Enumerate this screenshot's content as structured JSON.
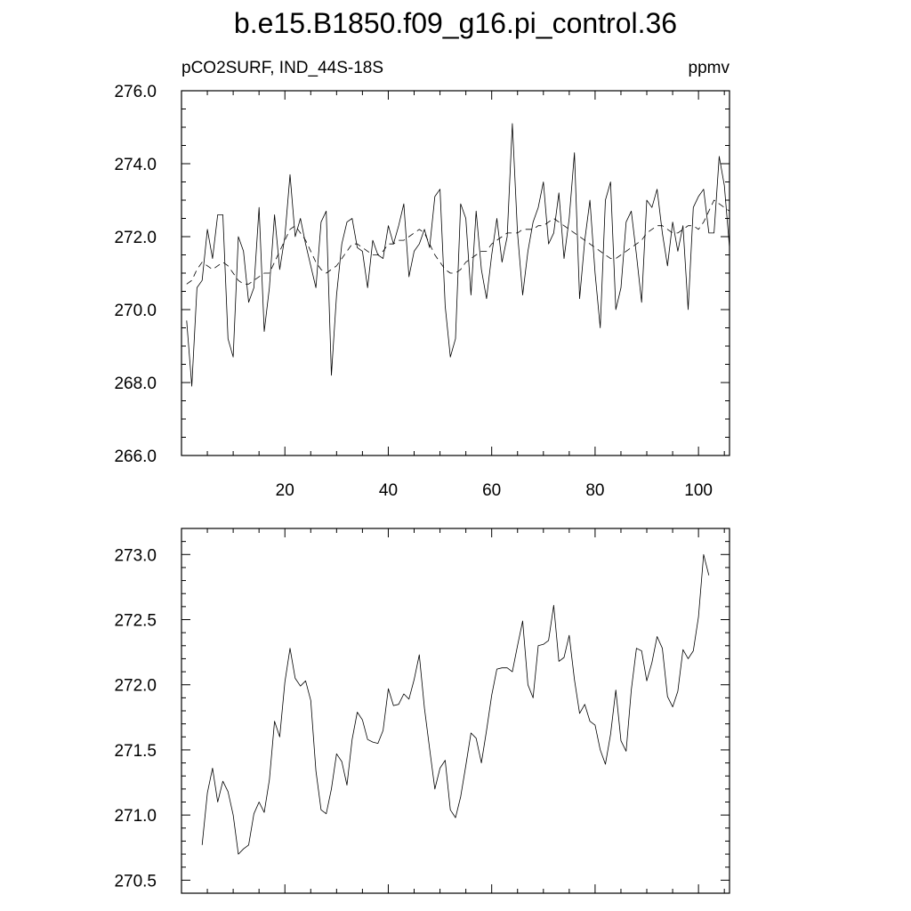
{
  "title": "b.e15.B1850.f09_g16.pi_control.36",
  "chart_data": [
    {
      "type": "line",
      "left_label": "pCO2SURF, IND_44S-18S",
      "right_label": "ppmv",
      "xlim": [
        0,
        106
      ],
      "ylim": [
        266,
        276
      ],
      "y_ticks": [
        266,
        268,
        270,
        272,
        274,
        276
      ],
      "y_tick_labels": [
        "266.0",
        "268.0",
        "270.0",
        "272.0",
        "274.0",
        "276.0"
      ],
      "x_ticks": [
        20,
        40,
        60,
        80,
        100
      ],
      "x_tick_labels": [
        "20",
        "40",
        "60",
        "80",
        "100"
      ],
      "x_start": 1,
      "series": [
        {
          "style": "solid",
          "values": [
            269.7,
            267.9,
            270.6,
            270.8,
            272.2,
            271.4,
            272.6,
            272.6,
            269.2,
            268.7,
            272.0,
            271.6,
            270.2,
            270.6,
            272.8,
            269.4,
            270.6,
            272.6,
            271.1,
            272.0,
            273.7,
            272.0,
            272.5,
            271.8,
            271.2,
            270.6,
            272.4,
            272.7,
            268.2,
            270.4,
            271.8,
            272.4,
            272.5,
            271.7,
            271.6,
            270.6,
            271.9,
            271.5,
            271.4,
            272.3,
            271.8,
            272.3,
            272.9,
            270.9,
            271.6,
            271.8,
            272.2,
            271.7,
            273.1,
            273.3,
            270.1,
            268.7,
            269.2,
            272.9,
            272.5,
            270.4,
            272.7,
            271.1,
            270.3,
            271.5,
            272.5,
            271.3,
            272.0,
            275.1,
            272.1,
            270.4,
            271.6,
            272.4,
            272.8,
            273.5,
            271.8,
            272.1,
            273.2,
            271.4,
            272.5,
            274.3,
            270.3,
            271.9,
            273.0,
            271.0,
            269.5,
            273.0,
            273.5,
            270.0,
            270.6,
            272.4,
            272.7,
            271.5,
            270.2,
            273.0,
            272.8,
            273.3,
            272.1,
            271.2,
            272.4,
            271.6,
            272.3,
            270.0,
            272.8,
            273.1,
            273.3,
            272.1,
            272.1,
            274.2,
            273.4,
            271.7
          ],
          "dash": "6,4"
        },
        {
          "style": "dashed",
          "values": [
            270.7,
            270.8,
            271.1,
            271.3,
            271.2,
            271.1,
            271.2,
            271.3,
            271.2,
            271.0,
            270.8,
            270.7,
            270.7,
            270.8,
            270.9,
            271.0,
            271.0,
            271.3,
            271.6,
            271.9,
            272.2,
            272.3,
            272.1,
            271.9,
            271.6,
            271.3,
            271.1,
            271.0,
            271.1,
            271.2,
            271.4,
            271.6,
            271.8,
            271.8,
            271.7,
            271.6,
            271.5,
            271.5,
            271.6,
            271.8,
            271.8,
            271.9,
            271.9,
            272.0,
            272.1,
            272.2,
            272.1,
            271.8,
            271.5,
            271.3,
            271.1,
            271.0,
            271.0,
            271.1,
            271.3,
            271.4,
            271.5,
            271.6,
            271.6,
            271.8,
            271.9,
            272.0,
            272.1,
            272.1,
            272.1,
            272.2,
            272.2,
            272.2,
            272.3,
            272.3,
            272.4,
            272.5,
            272.4,
            272.3,
            272.2,
            272.1,
            272.0,
            271.9,
            271.8,
            271.7,
            271.6,
            271.5,
            271.4,
            271.4,
            271.5,
            271.6,
            271.7,
            271.8,
            271.9,
            272.1,
            272.2,
            272.3,
            272.3,
            272.2,
            272.1,
            272.1,
            272.2,
            272.3,
            272.3,
            272.2,
            272.4,
            272.7,
            273.0,
            272.9,
            272.8,
            272.7
          ]
        }
      ]
    },
    {
      "type": "line",
      "xlim": [
        0,
        106
      ],
      "ylim": [
        270.4,
        273.2
      ],
      "y_ticks": [
        270.5,
        271.0,
        271.5,
        272.0,
        272.5,
        273.0
      ],
      "y_tick_labels": [
        "270.5",
        "271.0",
        "271.5",
        "272.0",
        "272.5",
        "273.0"
      ],
      "x_ticks": [
        20,
        40,
        60,
        80,
        100
      ],
      "x_start": 4,
      "series": [
        {
          "style": "solid",
          "values": [
            270.77,
            271.17,
            271.36,
            271.1,
            271.26,
            271.18,
            271.0,
            270.7,
            270.74,
            270.77,
            271.01,
            271.1,
            271.02,
            271.27,
            271.72,
            271.6,
            272.02,
            272.28,
            272.05,
            271.99,
            272.03,
            271.88,
            271.34,
            271.04,
            271.01,
            271.2,
            271.47,
            271.41,
            271.23,
            271.58,
            271.79,
            271.73,
            271.58,
            271.56,
            271.55,
            271.65,
            271.97,
            271.84,
            271.85,
            271.93,
            271.89,
            272.04,
            272.23,
            271.82,
            271.51,
            271.2,
            271.36,
            271.42,
            271.04,
            270.98,
            271.14,
            271.38,
            271.63,
            271.59,
            271.4,
            271.65,
            271.92,
            272.12,
            272.13,
            272.13,
            272.1,
            272.3,
            272.49,
            272.0,
            271.9,
            272.3,
            272.31,
            272.34,
            272.61,
            272.18,
            272.21,
            272.38,
            272.04,
            271.78,
            271.85,
            271.72,
            271.69,
            271.5,
            271.39,
            271.62,
            271.96,
            271.57,
            271.49,
            271.96,
            272.28,
            272.26,
            272.03,
            272.17,
            272.37,
            272.28,
            271.91,
            271.83,
            271.95,
            272.27,
            272.2,
            272.26,
            272.52,
            273.0,
            272.84
          ]
        }
      ]
    }
  ]
}
